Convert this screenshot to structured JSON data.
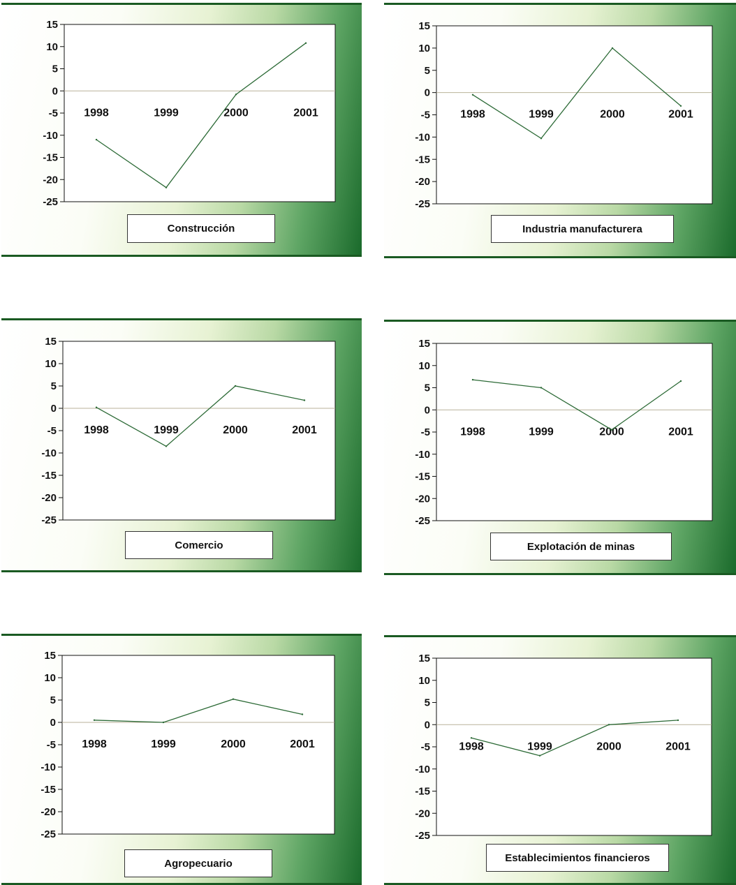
{
  "chart_data": [
    {
      "type": "line",
      "title": "Construcción",
      "categories": [
        "1998",
        "1999",
        "2000",
        "2001"
      ],
      "values": [
        -11,
        -21.8,
        -0.8,
        10.8
      ],
      "yticks": [
        "15",
        "10",
        "5",
        "0",
        "-5",
        "-10",
        "-15",
        "-20",
        "-25"
      ],
      "ylim": [
        -25,
        15
      ],
      "color": "#2c6a36"
    },
    {
      "type": "line",
      "title": "Industria manufacturera",
      "categories": [
        "1998",
        "1999",
        "2000",
        "2001"
      ],
      "values": [
        -0.5,
        -10.3,
        10,
        -3
      ],
      "yticks": [
        "15",
        "10",
        "5",
        "0",
        "-5",
        "-10",
        "-15",
        "-20",
        "-25"
      ],
      "ylim": [
        -25,
        15
      ],
      "color": "#2c6a36"
    },
    {
      "type": "line",
      "title": "Comercio",
      "categories": [
        "1998",
        "1999",
        "2000",
        "2001"
      ],
      "values": [
        0.2,
        -8.5,
        5,
        1.8
      ],
      "yticks": [
        "15",
        "10",
        "5",
        "0",
        "-5",
        "-10",
        "-15",
        "-20",
        "-25"
      ],
      "ylim": [
        -25,
        15
      ],
      "color": "#2c6a36"
    },
    {
      "type": "line",
      "title": "Explotación de minas",
      "categories": [
        "1998",
        "1999",
        "2000",
        "2001"
      ],
      "values": [
        6.8,
        5,
        -4.5,
        6.5
      ],
      "yticks": [
        "15",
        "10",
        "5",
        "0",
        "-5",
        "-10",
        "-15",
        "-20",
        "-25"
      ],
      "ylim": [
        -25,
        15
      ],
      "color": "#2c6a36"
    },
    {
      "type": "line",
      "title": "Agropecuario",
      "categories": [
        "1998",
        "1999",
        "2000",
        "2001"
      ],
      "values": [
        0.5,
        0,
        5.2,
        1.8
      ],
      "yticks": [
        "15",
        "10",
        "5",
        "0",
        "-5",
        "-10",
        "-15",
        "-20",
        "-25"
      ],
      "ylim": [
        -25,
        15
      ],
      "color": "#2c6a36"
    },
    {
      "type": "line",
      "title": "Establecimientos financieros",
      "categories": [
        "1998",
        "1999",
        "2000",
        "2001"
      ],
      "values": [
        -3,
        -7,
        0,
        1
      ],
      "yticks": [
        "15",
        "10",
        "5",
        "0",
        "-5",
        "-10",
        "-15",
        "-20",
        "-25"
      ],
      "ylim": [
        -25,
        15
      ],
      "color": "#2c6a36"
    }
  ]
}
